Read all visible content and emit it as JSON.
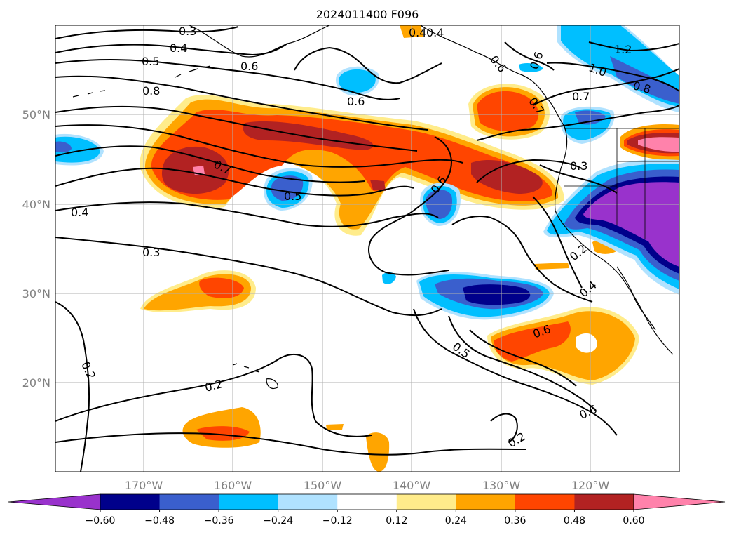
{
  "title": "2024011400 F096",
  "latitude_labels": [
    "50°N",
    "40°N",
    "30°N",
    "20°N"
  ],
  "longitude_labels": [
    "170°W",
    "160°W",
    "150°W",
    "140°W",
    "130°W",
    "120°W"
  ],
  "colorbar": {
    "ticks": [
      "−0.60",
      "−0.48",
      "−0.36",
      "−0.24",
      "−0.12",
      "0.12",
      "0.24",
      "0.36",
      "0.48",
      "0.60"
    ],
    "colors": [
      "#9932cc",
      "#00008b",
      "#3a5fcd",
      "#00bfff",
      "#b0e2ff",
      "#ffffff",
      "#ffec8b",
      "#ffa500",
      "#ff4500",
      "#b22222",
      "#ff82ab"
    ],
    "extend": "both"
  },
  "contour_labels": {
    "c1": "0.3",
    "c2": "0.4",
    "c3": "0.5",
    "c4": "0.6",
    "c5": "0.8",
    "c6": "0.6",
    "c7": "0.7",
    "c8": "0.5",
    "c9": "0.6",
    "c10": "0.4",
    "c11": "0.3",
    "c12": "0.2",
    "c13": "0.2",
    "c14": "0.5",
    "c15": "0.6",
    "c16": "0.6",
    "c17": "0.2",
    "c18": "0.4",
    "c19": "0.2",
    "c20": "0.3",
    "c21": "0.7",
    "c22": "0.8",
    "c23": "1.0",
    "c24": "1.2",
    "c25": "0.6",
    "c26": "0.4",
    "c27": "0.6",
    "c28": "0.7",
    "c29": "0.4"
  }
}
